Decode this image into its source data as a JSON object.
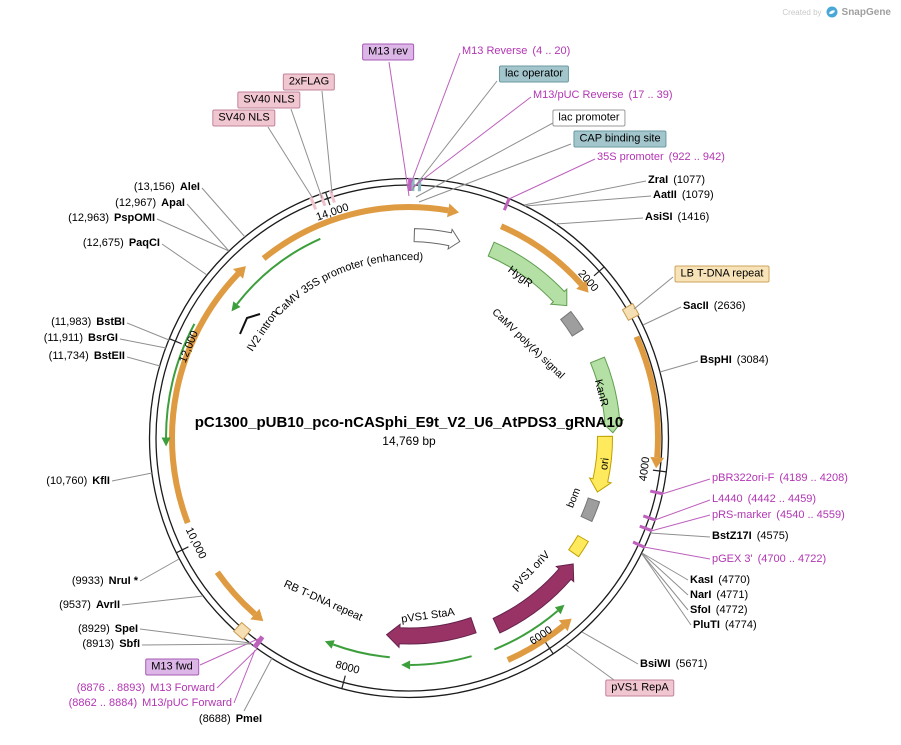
{
  "watermark": {
    "created_by": "Created by",
    "brand": "SnapGene"
  },
  "title": {
    "name": "pC1300_pUB10_pco-nCASphi_E9t_V2_U6_AtPDS3_gRNA10",
    "size": "14,769 bp"
  },
  "plasmid_length_bp": 14769,
  "colors": {
    "orange": "#DE9B41",
    "green_fill": "#B5E0A5",
    "green_stroke": "#5F9E4F",
    "thin_green": "#3C9F3C",
    "yellow_fill": "#FFE95C",
    "yellow_stroke": "#BFA100",
    "gray_fill": "#9E9E9E",
    "gray_stroke": "#757575",
    "maroon_fill": "#993366",
    "maroon_stroke": "#66224D",
    "tan_fill": "#F6DFB2",
    "tan_stroke": "#C89B52",
    "pink_fill": "#EFC2CC",
    "pink_stroke": "#BF7F93",
    "teal_fill": "#8FB8C0",
    "magenta_text": "#B335B3",
    "magenta_line": "#BD61BD",
    "line_gray": "#8F8F8F",
    "backbone": "#1B1B1B"
  },
  "axis_ticks": [
    {
      "bp": 2000,
      "label": "2000"
    },
    {
      "bp": 4000,
      "label": "4000"
    },
    {
      "bp": 6000,
      "label": "6000"
    },
    {
      "bp": 8000,
      "label": "8000"
    },
    {
      "bp": 10000,
      "label": "10,000"
    },
    {
      "bp": 12000,
      "label": "12,000"
    },
    {
      "bp": 14000,
      "label": "14,000"
    }
  ],
  "enzymes_right": [
    {
      "name": "ZraI",
      "num": "(1077)"
    },
    {
      "name": "AatII",
      "num": "(1079)"
    },
    {
      "name": "AsiSI",
      "num": "(1416)"
    },
    {
      "name": "SacII",
      "num": "(2636)"
    },
    {
      "name": "BspHI",
      "num": "(3084)"
    },
    {
      "name": "BstZ17I",
      "num": "(4575)"
    },
    {
      "name": "KasI",
      "num": "(4770)"
    },
    {
      "name": "NarI",
      "num": "(4771)"
    },
    {
      "name": "SfoI",
      "num": "(4772)"
    },
    {
      "name": "PluTI",
      "num": "(4774)"
    },
    {
      "name": "BsiWI",
      "num": "(5671)"
    }
  ],
  "enzymes_left": [
    {
      "num": "(8688)",
      "name": "PmeI"
    },
    {
      "num": "(8913)",
      "name": "SbfI"
    },
    {
      "num": "(8929)",
      "name": "SpeI"
    },
    {
      "num": "(9537)",
      "name": "AvrII"
    },
    {
      "num": "(9933)",
      "name": "NruI *"
    },
    {
      "num": "(10,760)",
      "name": "KflI"
    },
    {
      "num": "(11,734)",
      "name": "BstEII"
    },
    {
      "num": "(11,911)",
      "name": "BsrGI"
    },
    {
      "num": "(11,983)",
      "name": "BstBI"
    },
    {
      "num": "(12,675)",
      "name": "PaqCI"
    },
    {
      "num": "(12,963)",
      "name": "PspOMI"
    },
    {
      "num": "(12,967)",
      "name": "ApaI"
    },
    {
      "num": "(13,156)",
      "name": "AleI"
    }
  ],
  "primers_right": [
    {
      "name": "M13 Reverse",
      "range": "(4 .. 20)"
    },
    {
      "name": "M13/pUC Reverse",
      "range": "(17 .. 39)"
    },
    {
      "name": "35S promoter",
      "range": "(922 .. 942)"
    },
    {
      "name": "pBR322ori-F",
      "range": "(4189 .. 4208)"
    },
    {
      "name": "L4440",
      "range": "(4442 .. 4459)"
    },
    {
      "name": "pRS-marker",
      "range": "(4540 .. 4559)"
    },
    {
      "name": "pGEX 3'",
      "range": "(4700 .. 4722)"
    }
  ],
  "primers_left": [
    {
      "range": "(8876 .. 8893)",
      "name": "M13 Forward"
    },
    {
      "range": "(8862 .. 8884)",
      "name": "M13/pUC Forward"
    }
  ],
  "boxed_labels": [
    {
      "label": "M13 rev"
    },
    {
      "label": "lac operator"
    },
    {
      "label": "lac promoter"
    },
    {
      "label": "CAP binding site"
    },
    {
      "label": "LB T-DNA repeat"
    },
    {
      "label": "pVS1 RepA"
    },
    {
      "label": "M13 fwd"
    },
    {
      "label": "SV40 NLS"
    },
    {
      "label": "SV40 NLS"
    },
    {
      "label": "2xFLAG"
    }
  ],
  "feature_labels": {
    "camv35s": "CaMV 35S promoter (enhanced)",
    "iv2": "IV2 intron",
    "hygr": "HygR",
    "polya": "CaMV poly(A) signal",
    "kanr": "KanR",
    "ori": "ori",
    "bom": "bom",
    "pvs1_oriv": "pVS1 oriV",
    "pvs1_staa": "pVS1 StaA",
    "rb": "RB T-DNA repeat"
  }
}
